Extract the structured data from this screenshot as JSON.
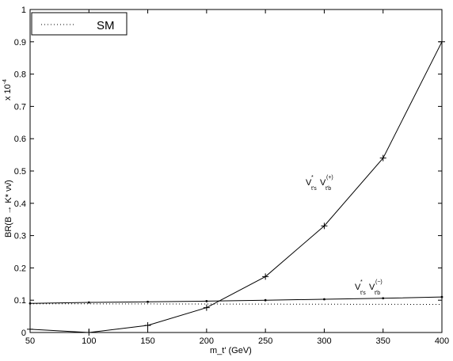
{
  "chart_data": {
    "type": "line",
    "xlabel": "m_t' (GeV)",
    "ylabel": "BR(B → K* νν̄)",
    "multiplier": "x 10",
    "multiplier_exponent": "-4",
    "xlim": [
      50,
      400
    ],
    "ylim": [
      0,
      1
    ],
    "xticks": [
      50,
      100,
      150,
      200,
      250,
      300,
      350,
      400
    ],
    "yticks": [
      0,
      0.1,
      0.2,
      0.3,
      0.4,
      0.5,
      0.6,
      0.7,
      0.8,
      0.9,
      1
    ],
    "grid": false,
    "legend_position": "top-left",
    "legend": [
      {
        "name": "SM",
        "style": "dotted"
      }
    ],
    "series": [
      {
        "name": "V*t's Vt'b (+)",
        "marker": "+",
        "x": [
          50,
          100,
          150,
          200,
          250,
          300,
          350,
          400
        ],
        "y": [
          0.01,
          0.0,
          0.022,
          0.077,
          0.173,
          0.33,
          0.54,
          0.9
        ]
      },
      {
        "name": "V*t's Vt'b (−)",
        "marker": ".",
        "x": [
          50,
          100,
          150,
          200,
          250,
          300,
          350,
          400
        ],
        "y": [
          0.09,
          0.093,
          0.095,
          0.097,
          0.1,
          0.103,
          0.106,
          0.11
        ]
      },
      {
        "name": "SM",
        "style": "dotted",
        "x": [
          50,
          400
        ],
        "y": [
          0.089,
          0.087
        ]
      }
    ],
    "annotations": [
      {
        "text": "V",
        "sub": "t's",
        "sup": "*",
        "text2": "V",
        "sub2": "t'b",
        "sup2": "(+)",
        "x": 315,
        "y": 0.45
      },
      {
        "text": "V",
        "sub": "t's",
        "sup": "*",
        "text2": "V",
        "sub2": "t'b",
        "sup2": "(−)",
        "x": 337,
        "y": 0.13
      }
    ]
  }
}
